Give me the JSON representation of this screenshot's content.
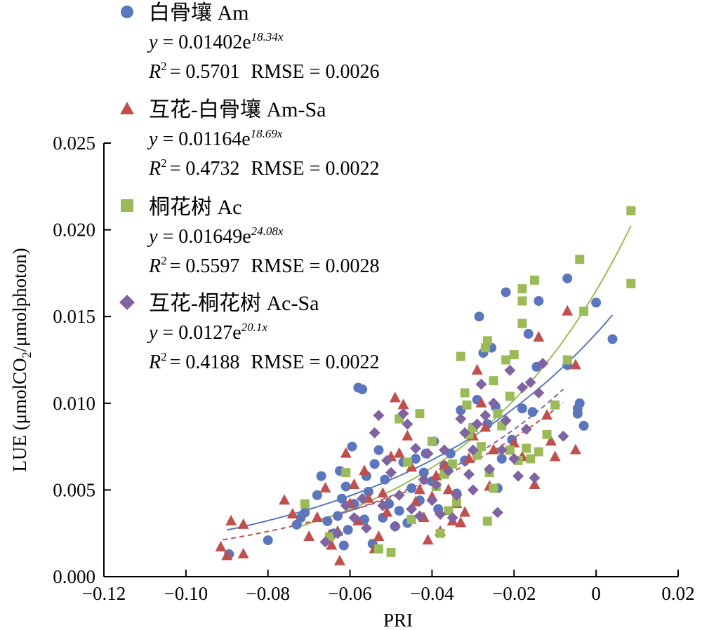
{
  "chart_data": {
    "type": "scatter",
    "title": "",
    "xlabel": "PRI",
    "ylabel": "LUE (μmolCO2/μmolphoton)",
    "ylabel_parts": {
      "before": "LUE (μmolCO",
      "sub": "2",
      "after": "/μmolphoton)"
    },
    "xlim": [
      -0.12,
      0.02
    ],
    "ylim": [
      0.0,
      0.025
    ],
    "x_ticks": [
      -0.12,
      -0.1,
      -0.08,
      -0.06,
      -0.04,
      -0.02,
      0,
      0.02
    ],
    "x_tick_labels": [
      "−0.12",
      "−0.10",
      "−0.08",
      "−0.06",
      "−0.04",
      "−0.02",
      "0",
      "0.02"
    ],
    "y_ticks": [
      0.0,
      0.005,
      0.01,
      0.015,
      0.02,
      0.025
    ],
    "y_tick_labels": [
      "0.000",
      "0.005",
      "0.010",
      "0.015",
      "0.020",
      "0.025"
    ],
    "grid": false,
    "legend_position": "top-left",
    "series": [
      {
        "name": "白骨壤 Am",
        "marker": "circle",
        "color": "#5b76bd",
        "fit": {
          "a": 0.01402,
          "b": 18.34,
          "dash": false,
          "x_range": [
            -0.09,
            0.004
          ]
        },
        "eq_prefix": "y = 0.01402e",
        "eq_exp": "18.34x",
        "stats_r2": "= 0.5701",
        "stats_rmse": "RMSE = 0.0026",
        "points": [
          [
            -0.0895,
            0.0013
          ],
          [
            -0.08,
            0.0021
          ],
          [
            -0.073,
            0.003
          ],
          [
            -0.072,
            0.0034
          ],
          [
            -0.071,
            0.0037
          ],
          [
            -0.068,
            0.0047
          ],
          [
            -0.067,
            0.0058
          ],
          [
            -0.0655,
            0.0032
          ],
          [
            -0.064,
            0.0025
          ],
          [
            -0.063,
            0.0035
          ],
          [
            -0.0625,
            0.0061
          ],
          [
            -0.062,
            0.0045
          ],
          [
            -0.0615,
            0.0018
          ],
          [
            -0.061,
            0.0052
          ],
          [
            -0.0605,
            0.0027
          ],
          [
            -0.0595,
            0.0075
          ],
          [
            -0.059,
            0.0042
          ],
          [
            -0.058,
            0.0109
          ],
          [
            -0.057,
            0.0108
          ],
          [
            -0.0565,
            0.0033
          ],
          [
            -0.056,
            0.0058
          ],
          [
            -0.0555,
            0.0049
          ],
          [
            -0.0545,
            0.0019
          ],
          [
            -0.054,
            0.0065
          ],
          [
            -0.053,
            0.0073
          ],
          [
            -0.052,
            0.0034
          ],
          [
            -0.0515,
            0.0056
          ],
          [
            -0.0505,
            0.0042
          ],
          [
            -0.049,
            0.0029
          ],
          [
            -0.048,
            0.0038
          ],
          [
            -0.047,
            0.0066
          ],
          [
            -0.046,
            0.0031
          ],
          [
            -0.045,
            0.0051
          ],
          [
            -0.044,
            0.0068
          ],
          [
            -0.043,
            0.0044
          ],
          [
            -0.042,
            0.006
          ],
          [
            -0.0415,
            0.0071
          ],
          [
            -0.04,
            0.0055
          ],
          [
            -0.0395,
            0.0078
          ],
          [
            -0.0385,
            0.0039
          ],
          [
            -0.037,
            0.0064
          ],
          [
            -0.0355,
            0.0071
          ],
          [
            -0.034,
            0.0048
          ],
          [
            -0.033,
            0.0096
          ],
          [
            -0.032,
            0.0067
          ],
          [
            -0.031,
            0.0082
          ],
          [
            -0.03,
            0.0086
          ],
          [
            -0.029,
            0.0102
          ],
          [
            -0.0285,
            0.015
          ],
          [
            -0.0275,
            0.0129
          ],
          [
            -0.0265,
            0.0088
          ],
          [
            -0.0255,
            0.0132
          ],
          [
            -0.0245,
            0.0098
          ],
          [
            -0.024,
            0.0051
          ],
          [
            -0.023,
            0.0068
          ],
          [
            -0.022,
            0.0164
          ],
          [
            -0.0205,
            0.0079
          ],
          [
            -0.018,
            0.0097
          ],
          [
            -0.0165,
            0.014
          ],
          [
            -0.0155,
            0.0095
          ],
          [
            -0.0145,
            0.0121
          ],
          [
            -0.014,
            0.0159
          ],
          [
            -0.007,
            0.0172
          ],
          [
            -0.007,
            0.0122
          ],
          [
            -0.0045,
            0.0094
          ],
          [
            -0.004,
            0.01
          ],
          [
            -0.003,
            0.0087
          ],
          [
            -0.0045,
            0.0097
          ],
          [
            0.0,
            0.0158
          ],
          [
            0.004,
            0.0137
          ]
        ]
      },
      {
        "name": "互花-白骨壤 Am-Sa",
        "marker": "triangle",
        "color": "#c0504d",
        "fit": {
          "a": 0.01164,
          "b": 18.69,
          "dash": true,
          "x_range": [
            -0.091,
            -0.008
          ]
        },
        "eq_prefix": "y = 0.01164e",
        "eq_exp": "18.69x",
        "stats_r2": "= 0.4732",
        "stats_rmse": "RMSE = 0.0022",
        "points": [
          [
            -0.0915,
            0.0017
          ],
          [
            -0.09,
            0.0012
          ],
          [
            -0.089,
            0.0032
          ],
          [
            -0.086,
            0.003
          ],
          [
            -0.086,
            0.0013
          ],
          [
            -0.076,
            0.0044
          ],
          [
            -0.074,
            0.0036
          ],
          [
            -0.07,
            0.0023
          ],
          [
            -0.068,
            0.0034
          ],
          [
            -0.066,
            0.0051
          ],
          [
            -0.065,
            0.0024
          ],
          [
            -0.0645,
            0.0018
          ],
          [
            -0.063,
            0.0026
          ],
          [
            -0.0625,
            0.0009
          ],
          [
            -0.061,
            0.0071
          ],
          [
            -0.06,
            0.0042
          ],
          [
            -0.059,
            0.0053
          ],
          [
            -0.058,
            0.0032
          ],
          [
            -0.0565,
            0.0061
          ],
          [
            -0.0555,
            0.0045
          ],
          [
            -0.054,
            0.0016
          ],
          [
            -0.053,
            0.0023
          ],
          [
            -0.052,
            0.0048
          ],
          [
            -0.051,
            0.0037
          ],
          [
            -0.05,
            0.0069
          ],
          [
            -0.049,
            0.0103
          ],
          [
            -0.048,
            0.0071
          ],
          [
            -0.047,
            0.0099
          ],
          [
            -0.046,
            0.0081
          ],
          [
            -0.045,
            0.0063
          ],
          [
            -0.044,
            0.0043
          ],
          [
            -0.043,
            0.005
          ],
          [
            -0.042,
            0.0034
          ],
          [
            -0.041,
            0.0021
          ],
          [
            -0.04,
            0.0046
          ],
          [
            -0.039,
            0.0058
          ],
          [
            -0.038,
            0.0026
          ],
          [
            -0.037,
            0.0064
          ],
          [
            -0.036,
            0.005
          ],
          [
            -0.035,
            0.0032
          ],
          [
            -0.034,
            0.0042
          ],
          [
            -0.033,
            0.0031
          ],
          [
            -0.032,
            0.0037
          ],
          [
            -0.031,
            0.0068
          ],
          [
            -0.03,
            0.0081
          ],
          [
            -0.029,
            0.0119
          ],
          [
            -0.028,
            0.01
          ],
          [
            -0.027,
            0.0086
          ],
          [
            -0.026,
            0.0052
          ],
          [
            -0.025,
            0.0073
          ],
          [
            -0.02,
            0.0077
          ],
          [
            -0.018,
            0.0069
          ],
          [
            -0.015,
            0.0053
          ],
          [
            -0.014,
            0.0138
          ],
          [
            -0.012,
            0.0093
          ],
          [
            -0.011,
            0.0078
          ],
          [
            -0.01,
            0.0069
          ],
          [
            -0.007,
            0.0153
          ],
          [
            -0.005,
            0.0122
          ],
          [
            -0.005,
            0.0073
          ]
        ]
      },
      {
        "name": "桐花树 Ac",
        "marker": "square",
        "color": "#9bbb59",
        "fit": {
          "a": 0.01649,
          "b": 24.08,
          "dash": false,
          "x_range": [
            -0.072,
            0.0085
          ]
        },
        "eq_prefix": "y = 0.01649e",
        "eq_exp": "24.08x",
        "stats_r2": "= 0.5597",
        "stats_rmse": "RMSE = 0.0028",
        "points": [
          [
            -0.071,
            0.0042
          ],
          [
            -0.065,
            0.0023
          ],
          [
            -0.061,
            0.006
          ],
          [
            -0.053,
            0.0016
          ],
          [
            -0.05,
            0.0014
          ],
          [
            -0.048,
            0.0091
          ],
          [
            -0.046,
            0.0066
          ],
          [
            -0.045,
            0.0033
          ],
          [
            -0.043,
            0.0094
          ],
          [
            -0.04,
            0.0078
          ],
          [
            -0.039,
            0.0052
          ],
          [
            -0.038,
            0.0025
          ],
          [
            -0.037,
            0.0059
          ],
          [
            -0.036,
            0.0038
          ],
          [
            -0.035,
            0.0065
          ],
          [
            -0.034,
            0.0043
          ],
          [
            -0.033,
            0.0127
          ],
          [
            -0.032,
            0.0106
          ],
          [
            -0.0315,
            0.0099
          ],
          [
            -0.031,
            0.0082
          ],
          [
            -0.03,
            0.0086
          ],
          [
            -0.029,
            0.007
          ],
          [
            -0.028,
            0.0075
          ],
          [
            -0.027,
            0.0132
          ],
          [
            -0.0265,
            0.0136
          ],
          [
            -0.026,
            0.006
          ],
          [
            -0.025,
            0.0113
          ],
          [
            -0.024,
            0.0094
          ],
          [
            -0.023,
            0.0087
          ],
          [
            -0.022,
            0.0125
          ],
          [
            -0.021,
            0.0104
          ],
          [
            -0.02,
            0.0128
          ],
          [
            -0.019,
            0.0067
          ],
          [
            -0.018,
            0.0166
          ],
          [
            -0.018,
            0.0159
          ],
          [
            -0.018,
            0.0146
          ],
          [
            -0.017,
            0.0074
          ],
          [
            -0.015,
            0.0171
          ],
          [
            -0.014,
            0.0072
          ],
          [
            -0.012,
            0.0082
          ],
          [
            -0.01,
            0.0099
          ],
          [
            -0.007,
            0.0125
          ],
          [
            -0.004,
            0.0183
          ],
          [
            -0.003,
            0.0153
          ],
          [
            0.0085,
            0.0169
          ],
          [
            0.0085,
            0.0211
          ],
          [
            -0.0265,
            0.0032
          ],
          [
            -0.025,
            0.0051
          ],
          [
            -0.021,
            0.0073
          ],
          [
            -0.016,
            0.0068
          ]
        ]
      },
      {
        "name": "互花-桐花树 Ac-Sa",
        "marker": "diamond",
        "color": "#8064a2",
        "fit": {
          "a": 0.0127,
          "b": 20.1,
          "dash": true,
          "x_range": [
            -0.068,
            -0.008
          ]
        },
        "eq_prefix": "y = 0.0127e",
        "eq_exp": "20.1x",
        "stats_r2": "= 0.4188",
        "stats_rmse": "RMSE = 0.0022",
        "points": [
          [
            -0.066,
            0.002
          ],
          [
            -0.063,
            0.0025
          ],
          [
            -0.061,
            0.0041
          ],
          [
            -0.059,
            0.0034
          ],
          [
            -0.057,
            0.0045
          ],
          [
            -0.056,
            0.0028
          ],
          [
            -0.054,
            0.0083
          ],
          [
            -0.053,
            0.0093
          ],
          [
            -0.052,
            0.0041
          ],
          [
            -0.051,
            0.0067
          ],
          [
            -0.05,
            0.006
          ],
          [
            -0.049,
            0.0029
          ],
          [
            -0.048,
            0.0047
          ],
          [
            -0.047,
            0.0094
          ],
          [
            -0.046,
            0.0088
          ],
          [
            -0.045,
            0.0039
          ],
          [
            -0.044,
            0.0074
          ],
          [
            -0.043,
            0.0035
          ],
          [
            -0.042,
            0.0056
          ],
          [
            -0.041,
            0.0071
          ],
          [
            -0.04,
            0.0044
          ],
          [
            -0.039,
            0.0053
          ],
          [
            -0.038,
            0.0036
          ],
          [
            -0.037,
            0.0073
          ],
          [
            -0.036,
            0.0061
          ],
          [
            -0.035,
            0.0034
          ],
          [
            -0.034,
            0.0047
          ],
          [
            -0.033,
            0.0091
          ],
          [
            -0.032,
            0.0083
          ],
          [
            -0.031,
            0.0059
          ],
          [
            -0.03,
            0.005
          ],
          [
            -0.029,
            0.0088
          ],
          [
            -0.028,
            0.0111
          ],
          [
            -0.027,
            0.0093
          ],
          [
            -0.026,
            0.0062
          ],
          [
            -0.025,
            0.01
          ],
          [
            -0.024,
            0.0037
          ],
          [
            -0.023,
            0.0073
          ],
          [
            -0.021,
            0.0119
          ],
          [
            -0.02,
            0.0068
          ],
          [
            -0.019,
            0.0058
          ],
          [
            -0.018,
            0.0109
          ],
          [
            -0.017,
            0.0085
          ],
          [
            -0.016,
            0.0112
          ],
          [
            -0.015,
            0.0057
          ],
          [
            -0.014,
            0.0106
          ],
          [
            -0.013,
            0.0123
          ],
          [
            -0.008,
            0.0081
          ],
          [
            -0.03,
            0.0073
          ],
          [
            -0.022,
            0.009
          ]
        ]
      }
    ]
  }
}
